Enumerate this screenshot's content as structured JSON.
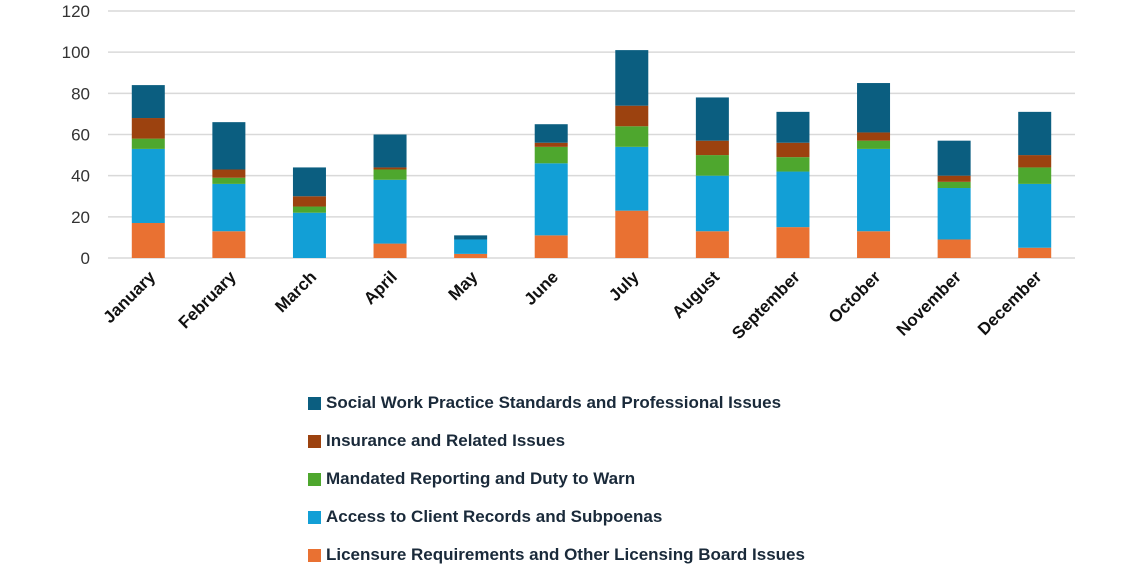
{
  "chart_data": {
    "type": "bar",
    "stacked": true,
    "categories": [
      "January",
      "February",
      "March",
      "April",
      "May",
      "June",
      "July",
      "August",
      "September",
      "October",
      "November",
      "December"
    ],
    "series": [
      {
        "name": "Licensure Requirements and Other Licensing Board Issues",
        "color": "#E97132",
        "values": [
          17,
          13,
          0,
          7,
          2,
          11,
          23,
          13,
          15,
          13,
          9,
          5
        ]
      },
      {
        "name": "Access to Client Records and Subpoenas",
        "color": "#129FD6",
        "values": [
          36,
          23,
          22,
          31,
          7,
          35,
          31,
          27,
          27,
          40,
          25,
          31
        ]
      },
      {
        "name": "Mandated Reporting and Duty to Warn",
        "color": "#4EA72E",
        "values": [
          5,
          3,
          3,
          5,
          0,
          8,
          10,
          10,
          7,
          4,
          3,
          8
        ]
      },
      {
        "name": "Insurance and Related Issues",
        "color": "#9C420F",
        "values": [
          10,
          4,
          5,
          1,
          0,
          2,
          10,
          7,
          7,
          4,
          3,
          6
        ]
      },
      {
        "name": "Social Work Practice Standards and Professional Issues",
        "color": "#0B5E80",
        "values": [
          16,
          23,
          14,
          16,
          2,
          9,
          27,
          21,
          15,
          24,
          17,
          21
        ]
      }
    ],
    "yticks": [
      "0",
      "20",
      "40",
      "60",
      "80",
      "100",
      "120"
    ],
    "ylim": [
      0,
      120
    ],
    "grid": true,
    "legend_position": "bottom"
  }
}
